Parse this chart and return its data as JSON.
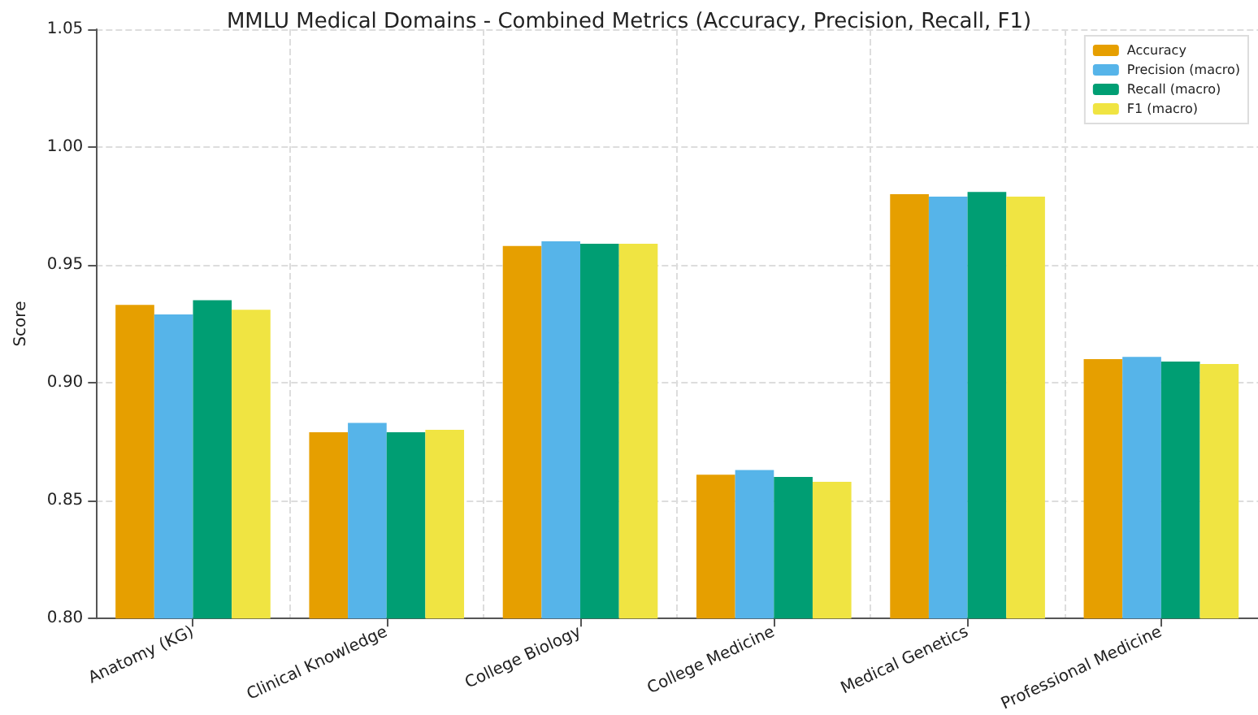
{
  "chart_data": {
    "type": "bar",
    "title": "MMLU Medical Domains - Combined Metrics (Accuracy, Precision, Recall, F1)",
    "ylabel": "Score",
    "categories": [
      "Anatomy (KG)",
      "Clinical Knowledge",
      "College Biology",
      "College Medicine",
      "Medical Genetics",
      "Professional Medicine"
    ],
    "series": [
      {
        "name": "Accuracy",
        "color": "#e69f00",
        "values": [
          0.933,
          0.879,
          0.958,
          0.861,
          0.98,
          0.91
        ]
      },
      {
        "name": "Precision (macro)",
        "color": "#56b4e9",
        "values": [
          0.929,
          0.883,
          0.96,
          0.863,
          0.979,
          0.911
        ]
      },
      {
        "name": "Recall (macro)",
        "color": "#009e73",
        "values": [
          0.935,
          0.879,
          0.959,
          0.86,
          0.981,
          0.909
        ]
      },
      {
        "name": "F1 (macro)",
        "color": "#f0e442",
        "values": [
          0.931,
          0.88,
          0.959,
          0.858,
          0.979,
          0.908
        ]
      }
    ],
    "ylim": [
      0.8,
      1.05
    ],
    "yticks": [
      {
        "value": 0.8,
        "label": "0.80"
      },
      {
        "value": 0.85,
        "label": "0.85"
      },
      {
        "value": 0.9,
        "label": "0.90"
      },
      {
        "value": 0.95,
        "label": "0.95"
      },
      {
        "value": 1.0,
        "label": "1.00"
      },
      {
        "value": 1.05,
        "label": "1.05"
      }
    ],
    "grid": true,
    "legend": "top right"
  }
}
